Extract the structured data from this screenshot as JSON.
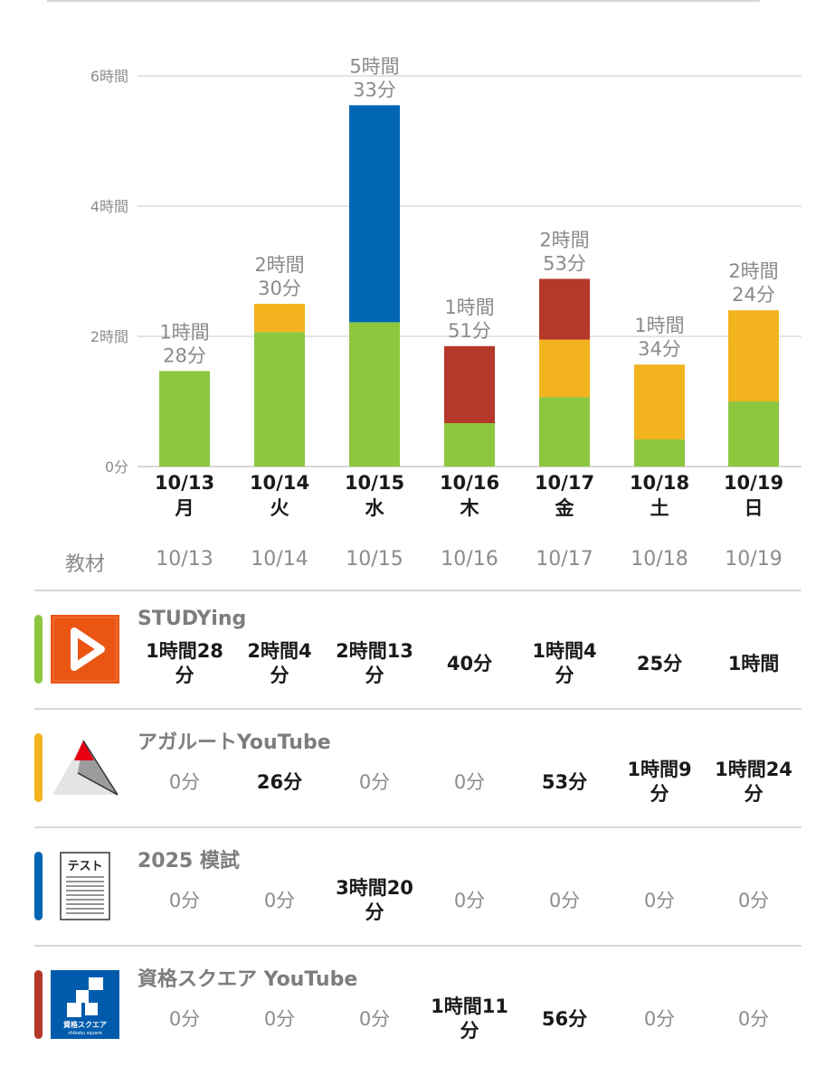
{
  "chart_data": {
    "type": "bar",
    "stacked": true,
    "y_ticks": [
      "6時間",
      "4時間",
      "2時間",
      "0分"
    ],
    "ylim": [
      0,
      360
    ],
    "y_unit": "minutes",
    "categories": [
      {
        "date": "10/13",
        "weekday": "月"
      },
      {
        "date": "10/14",
        "weekday": "火"
      },
      {
        "date": "10/15",
        "weekday": "水"
      },
      {
        "date": "10/16",
        "weekday": "木"
      },
      {
        "date": "10/17",
        "weekday": "金"
      },
      {
        "date": "10/18",
        "weekday": "土"
      },
      {
        "date": "10/19",
        "weekday": "日"
      }
    ],
    "totals": [
      [
        "1時間",
        "28分"
      ],
      [
        "2時間",
        "30分"
      ],
      [
        "5時間",
        "33分"
      ],
      [
        "1時間",
        "51分"
      ],
      [
        "2時間",
        "53分"
      ],
      [
        "1時間",
        "34分"
      ],
      [
        "2時間",
        "24分"
      ]
    ],
    "total_minutes": [
      88,
      150,
      333,
      111,
      173,
      94,
      144
    ],
    "series": [
      {
        "color": "#8dc63f",
        "values": [
          88,
          124,
          133,
          40,
          64,
          25,
          60
        ]
      },
      {
        "color": "#f3b31f",
        "values": [
          0,
          26,
          0,
          0,
          53,
          69,
          84
        ]
      },
      {
        "color": "#0066b3",
        "values": [
          0,
          0,
          200,
          0,
          0,
          0,
          0
        ]
      },
      {
        "color": "#b5382a",
        "values": [
          0,
          0,
          0,
          71,
          56,
          0,
          0
        ]
      }
    ],
    "grid": true
  },
  "table": {
    "header_label": "教材",
    "dates": [
      "10/13",
      "10/14",
      "10/15",
      "10/16",
      "10/17",
      "10/18",
      "10/19"
    ],
    "materials": [
      {
        "name": "STUDYing",
        "color": "#8dc63f",
        "icon": "studying-play-icon",
        "values": [
          [
            "1時間28",
            "分"
          ],
          [
            "2時間4",
            "分"
          ],
          [
            "2時間13",
            "分"
          ],
          [
            "40分"
          ],
          [
            "1時間4",
            "分"
          ],
          [
            "25分"
          ],
          [
            "1時間"
          ]
        ]
      },
      {
        "name": "アガルートYouTube",
        "color": "#f3b31f",
        "icon": "agaroot-logo-icon",
        "values": [
          [
            "0分"
          ],
          [
            "26分"
          ],
          [
            "0分"
          ],
          [
            "0分"
          ],
          [
            "53分"
          ],
          [
            "1時間9",
            "分"
          ],
          [
            "1時間24",
            "分"
          ]
        ]
      },
      {
        "name": "2025 模試",
        "color": "#0066b3",
        "icon": "test-paper-icon",
        "icon_text": "テスト",
        "values": [
          [
            "0分"
          ],
          [
            "0分"
          ],
          [
            "3時間20",
            "分"
          ],
          [
            "0分"
          ],
          [
            "0分"
          ],
          [
            "0分"
          ],
          [
            "0分"
          ]
        ]
      },
      {
        "name": "資格スクエア YouTube",
        "color": "#b5382a",
        "icon": "shikaku-square-logo-icon",
        "icon_text": "資格スクエア",
        "icon_subtext": "shikaku square",
        "values": [
          [
            "0分"
          ],
          [
            "0分"
          ],
          [
            "0分"
          ],
          [
            "1時間11",
            "分"
          ],
          [
            "56分"
          ],
          [
            "0分"
          ],
          [
            "0分"
          ]
        ]
      }
    ]
  }
}
